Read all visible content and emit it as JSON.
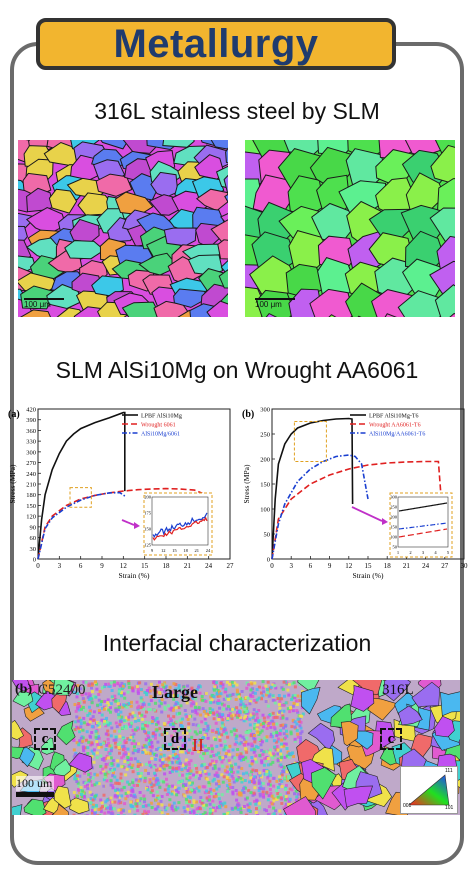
{
  "banner": {
    "title": "Metallurgy"
  },
  "sections": {
    "s1": {
      "title": "316L stainless steel by SLM",
      "scale_left": "100 μm",
      "scale_right": "100 μm"
    },
    "s2": {
      "title": "SLM AlSi10Mg on Wrought AA6061"
    },
    "s3": {
      "title": "Interfacial characterization"
    }
  },
  "chart_data": [
    {
      "type": "line",
      "panel_label": "(a)",
      "xlabel": "Strain (%)",
      "ylabel": "Stress (MPa)",
      "xlim": [
        0,
        27
      ],
      "ylim": [
        0,
        420
      ],
      "xticks": [
        0,
        3,
        6,
        9,
        12,
        15,
        18,
        21,
        24,
        27
      ],
      "yticks": [
        0,
        30,
        60,
        90,
        120,
        150,
        180,
        210,
        240,
        270,
        300,
        330,
        360,
        390,
        420
      ],
      "legend_position": "top-right",
      "series": [
        {
          "name": "LPBF AlSi10Mg",
          "color": "#111111",
          "style": "solid",
          "x": [
            0,
            0.5,
            1,
            2,
            3,
            4,
            5,
            6,
            8,
            10,
            12,
            12.2,
            12.2
          ],
          "y": [
            0,
            110,
            180,
            250,
            295,
            330,
            350,
            365,
            382,
            395,
            410,
            410,
            190
          ]
        },
        {
          "name": "Wrought 6061",
          "color": "#e02020",
          "style": "dashed",
          "x": [
            0,
            1,
            2,
            4,
            6,
            8,
            10,
            12,
            14,
            16,
            18,
            20,
            22,
            23,
            23.3
          ],
          "y": [
            0,
            90,
            120,
            150,
            168,
            178,
            185,
            190,
            194,
            196,
            197,
            196,
            193,
            185,
            120
          ]
        },
        {
          "name": "AlSi10Mg/6061",
          "color": "#1a3fd0",
          "style": "dashdot",
          "x": [
            0,
            1,
            2,
            4,
            6,
            8,
            10,
            11.5,
            12.3
          ],
          "y": [
            0,
            85,
            115,
            145,
            165,
            178,
            185,
            186,
            175
          ]
        }
      ],
      "inset": {
        "xticks": [
          9,
          12,
          15,
          18,
          21,
          24
        ],
        "yticks": [
          125,
          150,
          175,
          200
        ]
      }
    },
    {
      "type": "line",
      "panel_label": "(b)",
      "xlabel": "Strain (%)",
      "ylabel": "Stress (MPa)",
      "xlim": [
        0,
        30
      ],
      "ylim": [
        0,
        300
      ],
      "xticks": [
        0,
        3,
        6,
        9,
        12,
        15,
        18,
        21,
        24,
        27,
        30
      ],
      "yticks": [
        0,
        50,
        100,
        150,
        200,
        250,
        300
      ],
      "legend_position": "top-right",
      "series": [
        {
          "name": "LPBF AlSi10Mg-T6",
          "color": "#111111",
          "style": "solid",
          "x": [
            0,
            0.5,
            1,
            2,
            3,
            4,
            6,
            8,
            10,
            12,
            12.5,
            12.6
          ],
          "y": [
            0,
            120,
            190,
            230,
            250,
            262,
            272,
            277,
            280,
            281,
            280,
            110
          ]
        },
        {
          "name": "Wrought AA6061-T6",
          "color": "#e02020",
          "style": "dashed",
          "x": [
            0,
            1,
            3,
            6,
            9,
            12,
            15,
            18,
            21,
            24,
            26,
            26.5
          ],
          "y": [
            0,
            80,
            120,
            150,
            168,
            180,
            188,
            192,
            194,
            195,
            195,
            110
          ]
        },
        {
          "name": "AlSi10Mg/AA6061-T6",
          "color": "#1a3fd0",
          "style": "dashdot",
          "x": [
            0,
            1,
            2,
            4,
            6,
            8,
            10,
            12,
            13,
            14,
            15
          ],
          "y": [
            0,
            70,
            110,
            155,
            180,
            195,
            205,
            208,
            205,
            190,
            120
          ]
        }
      ],
      "inset": {
        "xticks": [
          1,
          2,
          3,
          4,
          5
        ],
        "yticks": [
          50,
          100,
          150,
          200,
          250,
          300
        ]
      }
    }
  ],
  "ebsd": {
    "panel_label": "(b)",
    "left_label": "C52400",
    "center_label": "Large",
    "right_label": "316L",
    "box_c1": "c",
    "box_d": "d",
    "box_c2": "c",
    "region_label": "II",
    "scale_bar": "100 um",
    "ipf": {
      "tl": "001",
      "tr": "111",
      "bl": "101"
    }
  }
}
